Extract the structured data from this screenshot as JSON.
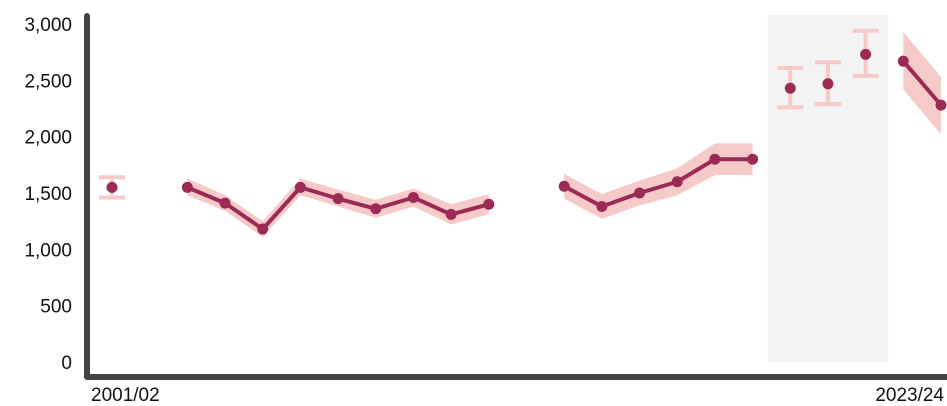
{
  "chart_data": {
    "type": "line",
    "title": "",
    "xlabel": "",
    "ylabel": "",
    "ylim": [
      0,
      3000
    ],
    "yticks": [
      0,
      500,
      1000,
      1500,
      2000,
      2500,
      3000
    ],
    "ytick_labels": [
      "0",
      "500",
      "1,000",
      "1,500",
      "2,000",
      "2,500",
      "3,000"
    ],
    "x_first_label": "2001/02",
    "x_last_label": "2023/24",
    "grid": false,
    "legend": "none",
    "shaded_period": {
      "from": "2019/20",
      "to": "2021/22"
    },
    "colors": {
      "line": "#9b2a55",
      "band": "#f7caca",
      "shade": "#f3f3f3",
      "axis": "#444444",
      "text": "#111111"
    },
    "series": [
      {
        "points": [
          {
            "x": "2001/02",
            "y": 1550,
            "lo": 1460,
            "hi": 1640
          },
          {
            "x": "2002/03",
            "y": null
          },
          {
            "x": "2003/04",
            "y": 1550,
            "lo": 1480,
            "hi": 1630
          },
          {
            "x": "2004/05",
            "y": 1410,
            "lo": 1340,
            "hi": 1480
          },
          {
            "x": "2005/06",
            "y": 1180,
            "lo": 1110,
            "hi": 1250
          },
          {
            "x": "2006/07",
            "y": 1550,
            "lo": 1480,
            "hi": 1630
          },
          {
            "x": "2007/08",
            "y": 1450,
            "lo": 1380,
            "hi": 1530
          },
          {
            "x": "2008/09",
            "y": 1360,
            "lo": 1280,
            "hi": 1440
          },
          {
            "x": "2009/10",
            "y": 1460,
            "lo": 1380,
            "hi": 1540
          },
          {
            "x": "2010/11",
            "y": 1310,
            "lo": 1220,
            "hi": 1400
          },
          {
            "x": "2011/12",
            "y": 1400,
            "lo": 1310,
            "hi": 1490
          },
          {
            "x": "2012/13",
            "y": null
          },
          {
            "x": "2013/14",
            "y": 1560,
            "lo": 1450,
            "hi": 1670
          },
          {
            "x": "2014/15",
            "y": 1380,
            "lo": 1270,
            "hi": 1490
          },
          {
            "x": "2015/16",
            "y": 1500,
            "lo": 1390,
            "hi": 1610
          },
          {
            "x": "2016/17",
            "y": 1600,
            "lo": 1480,
            "hi": 1720
          },
          {
            "x": "2017/18",
            "y": 1800,
            "lo": 1660,
            "hi": 1940
          },
          {
            "x": "2018/19",
            "y": 1800,
            "lo": 1660,
            "hi": 1940
          },
          {
            "x": "2019/20",
            "y": 2430,
            "lo": 2260,
            "hi": 2610,
            "marker": "errorbar"
          },
          {
            "x": "2020/21",
            "y": 2470,
            "lo": 2290,
            "hi": 2660,
            "marker": "errorbar"
          },
          {
            "x": "2021/22",
            "y": 2730,
            "lo": 2540,
            "hi": 2940,
            "marker": "errorbar"
          },
          {
            "x": "2022/23",
            "y": 2670,
            "lo": 2420,
            "hi": 2930
          },
          {
            "x": "2023/24",
            "y": 2280,
            "lo": 2020,
            "hi": 2530
          }
        ]
      }
    ]
  }
}
